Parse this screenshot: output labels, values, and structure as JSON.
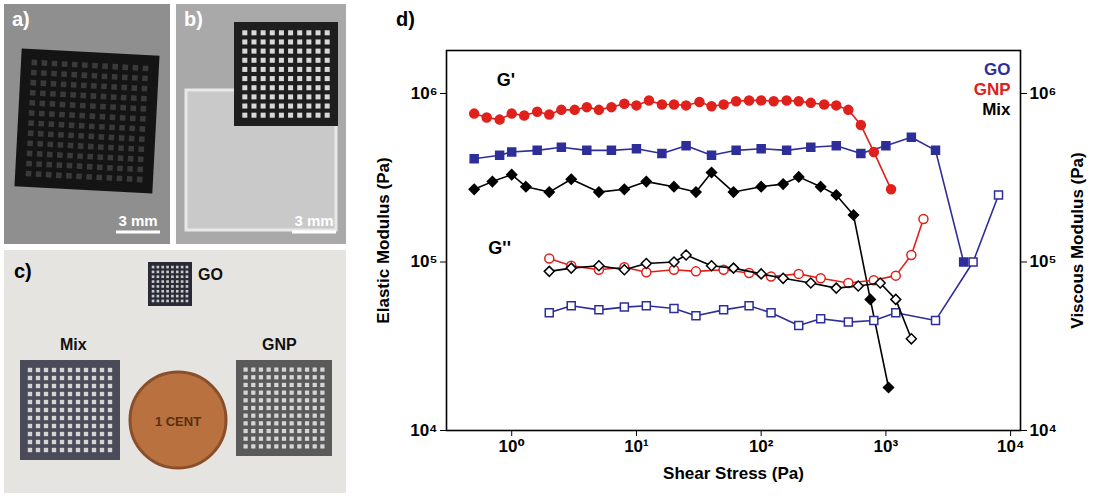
{
  "photos": {
    "a": {
      "label": "a)",
      "scale_bar": "3 mm"
    },
    "b": {
      "label": "b)",
      "scale_bar": "3 mm"
    },
    "c": {
      "label": "c)",
      "samples": [
        "GO",
        "Mix",
        "GNP"
      ],
      "coin": "1 CENT"
    }
  },
  "chart_data": {
    "type": "line",
    "panel_label": "d)",
    "x_label": "Shear Stress (Pa)",
    "y_label": "Elastic Modulus (Pa)",
    "y2_label": "Viscous Modulus (Pa)",
    "log": true,
    "legend": "top-right",
    "xlim": [
      0.3,
      12000
    ],
    "xticks": [
      {
        "value": 1,
        "label": "10⁰"
      },
      {
        "value": 10,
        "label": "10¹"
      },
      {
        "value": 100,
        "label": "10²"
      },
      {
        "value": 1000,
        "label": "10³"
      },
      {
        "value": 10000,
        "label": "10⁴"
      }
    ],
    "ylim": [
      10000,
      1800000
    ],
    "yticks": [
      {
        "value": 10000,
        "label": "10⁴"
      },
      {
        "value": 100000,
        "label": "10⁵"
      },
      {
        "value": 1000000,
        "label": "10⁶"
      }
    ],
    "y2lim": [
      10000,
      1800000
    ],
    "y2ticks": [
      {
        "value": 10000,
        "label": "10⁴"
      },
      {
        "value": 100000,
        "label": "10⁵"
      },
      {
        "value": 1000000,
        "label": "10⁶"
      }
    ],
    "annotations": [
      {
        "text": "G'",
        "x": 0.9,
        "y": 1200000
      },
      {
        "text": "G''",
        "x": 0.8,
        "y": 120000
      }
    ],
    "series": [
      {
        "name": "GO",
        "color": "#2e2e9a",
        "marker": "square",
        "line_style": "solid",
        "x": [
          0.5,
          0.8,
          1,
          1.6,
          2.5,
          4,
          6.3,
          10,
          16,
          25,
          40,
          63,
          100,
          160,
          250,
          400,
          630,
          1000,
          1600,
          2500,
          4200
        ],
        "values": [
          410000,
          430000,
          450000,
          460000,
          480000,
          460000,
          460000,
          470000,
          440000,
          490000,
          430000,
          460000,
          470000,
          460000,
          480000,
          490000,
          440000,
          490000,
          550000,
          460000,
          100000
        ]
      },
      {
        "name": "GNP",
        "color": "#e0201b",
        "marker": "circle",
        "line_style": "solid",
        "x": [
          0.5,
          0.63,
          0.8,
          1,
          1.26,
          1.6,
          2,
          2.5,
          3.2,
          4,
          5,
          6.3,
          8,
          10,
          12.6,
          16,
          20,
          25,
          32,
          40,
          50,
          63,
          80,
          100,
          126,
          160,
          200,
          250,
          320,
          400,
          500,
          630,
          800,
          1100
        ],
        "values": [
          760000,
          720000,
          700000,
          760000,
          740000,
          780000,
          750000,
          800000,
          800000,
          830000,
          800000,
          830000,
          870000,
          850000,
          910000,
          860000,
          860000,
          850000,
          890000,
          840000,
          860000,
          900000,
          910000,
          910000,
          900000,
          910000,
          900000,
          880000,
          860000,
          850000,
          800000,
          650000,
          450000,
          270000
        ]
      },
      {
        "name": "Mix",
        "color": "#000000",
        "marker": "diamond",
        "line_style": "solid",
        "x": [
          0.5,
          0.7,
          1,
          1.3,
          2,
          3,
          5,
          8,
          12,
          20,
          30,
          40,
          60,
          100,
          150,
          200,
          300,
          400,
          550,
          750,
          1050
        ],
        "values": [
          270000,
          300000,
          330000,
          280000,
          260000,
          310000,
          260000,
          270000,
          300000,
          280000,
          260000,
          340000,
          260000,
          280000,
          290000,
          320000,
          280000,
          250000,
          190000,
          60000,
          18000
        ]
      },
      {
        "name": "GO",
        "color": "#2e2e9a",
        "marker": "open-square",
        "line_style": "solid",
        "axis": "y2",
        "x": [
          2,
          3,
          5,
          8,
          12,
          20,
          30,
          50,
          80,
          120,
          200,
          300,
          500,
          800,
          1200,
          2500,
          5000,
          8000
        ],
        "values": [
          50000,
          55000,
          52000,
          54000,
          55000,
          53000,
          48000,
          52000,
          55000,
          50000,
          42000,
          46000,
          44000,
          45000,
          50000,
          45000,
          100000,
          250000
        ]
      },
      {
        "name": "GNP",
        "color": "#e0201b",
        "marker": "open-circle",
        "line_style": "solid",
        "axis": "y2",
        "x": [
          2,
          3,
          5,
          8,
          12,
          20,
          30,
          50,
          80,
          120,
          200,
          300,
          500,
          800,
          1200,
          1600,
          2000
        ],
        "values": [
          105000,
          95000,
          90000,
          93000,
          87000,
          90000,
          88000,
          90000,
          86000,
          82000,
          85000,
          80000,
          75000,
          78000,
          83000,
          110000,
          180000
        ]
      },
      {
        "name": "Mix",
        "color": "#000000",
        "marker": "open-diamond",
        "line_style": "solid",
        "axis": "y2",
        "x": [
          2,
          3,
          5,
          8,
          12,
          20,
          25,
          40,
          60,
          100,
          150,
          250,
          400,
          600,
          900,
          1200,
          1600
        ],
        "values": [
          88000,
          92000,
          95000,
          90000,
          98000,
          100000,
          110000,
          95000,
          92000,
          85000,
          80000,
          75000,
          70000,
          72000,
          75000,
          60000,
          35000
        ]
      }
    ]
  }
}
